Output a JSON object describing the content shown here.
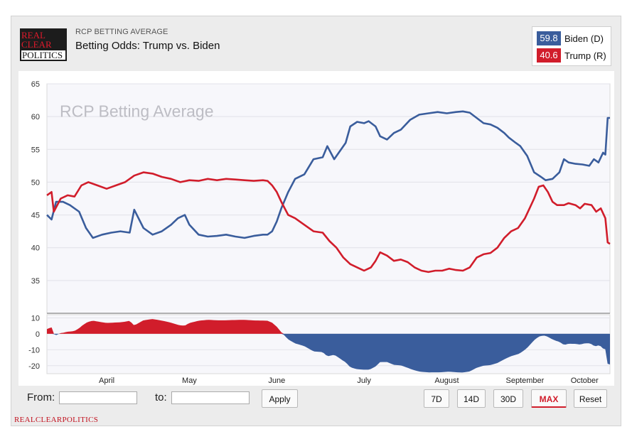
{
  "header": {
    "logo_text": [
      "REAL",
      "CLEAR",
      "POLITICS"
    ],
    "eyebrow": "RCP BETTING AVERAGE",
    "title": "Betting Odds: Trump vs. Biden"
  },
  "legend": [
    {
      "value": "59.8",
      "name": "Biden (D)",
      "color": "#3a5d9c"
    },
    {
      "value": "40.6",
      "name": "Trump (R)",
      "color": "#d11d2b"
    }
  ],
  "controls": {
    "from_label": "From:",
    "to_label": "to:",
    "apply_label": "Apply",
    "range_buttons": [
      "7D",
      "14D",
      "30D",
      "MAX"
    ],
    "active_range": "MAX",
    "reset_label": "Reset"
  },
  "footer_brand": "REALCLEARPOLITICS",
  "chart_data": {
    "type": "line",
    "watermark": "RCP Betting Average",
    "y_ticks": [
      35,
      40,
      45,
      50,
      55,
      60,
      65
    ],
    "ylim": [
      30,
      65
    ],
    "spread_ticks": [
      10,
      0,
      -10,
      -20
    ],
    "spread_lim": [
      -25,
      12
    ],
    "month_labels": [
      "April",
      "May",
      "June",
      "July",
      "August",
      "September",
      "October"
    ],
    "month_positions": [
      0.13,
      0.31,
      0.5,
      0.69,
      0.87,
      1.04,
      1.2
    ],
    "x_domain": [
      0,
      1.225
    ],
    "series": [
      {
        "name": "Biden (D)",
        "color": "#3a5d9c",
        "points": [
          [
            0.0,
            45.0
          ],
          [
            0.01,
            44.3
          ],
          [
            0.02,
            47.0
          ],
          [
            0.035,
            47.0
          ],
          [
            0.05,
            46.5
          ],
          [
            0.07,
            45.5
          ],
          [
            0.085,
            43.0
          ],
          [
            0.1,
            41.5
          ],
          [
            0.12,
            42.0
          ],
          [
            0.14,
            42.3
          ],
          [
            0.16,
            42.5
          ],
          [
            0.18,
            42.3
          ],
          [
            0.19,
            45.8
          ],
          [
            0.21,
            43.0
          ],
          [
            0.23,
            42.0
          ],
          [
            0.25,
            42.5
          ],
          [
            0.27,
            43.5
          ],
          [
            0.285,
            44.5
          ],
          [
            0.3,
            45.0
          ],
          [
            0.31,
            43.5
          ],
          [
            0.33,
            42.0
          ],
          [
            0.35,
            41.7
          ],
          [
            0.37,
            41.8
          ],
          [
            0.39,
            42.0
          ],
          [
            0.41,
            41.7
          ],
          [
            0.43,
            41.5
          ],
          [
            0.45,
            41.8
          ],
          [
            0.47,
            42.0
          ],
          [
            0.48,
            42.0
          ],
          [
            0.49,
            42.5
          ],
          [
            0.5,
            44.0
          ],
          [
            0.51,
            46.0
          ],
          [
            0.525,
            48.5
          ],
          [
            0.54,
            50.5
          ],
          [
            0.56,
            51.2
          ],
          [
            0.58,
            53.5
          ],
          [
            0.6,
            53.8
          ],
          [
            0.61,
            55.5
          ],
          [
            0.625,
            53.5
          ],
          [
            0.64,
            55.0
          ],
          [
            0.65,
            56.0
          ],
          [
            0.66,
            58.5
          ],
          [
            0.675,
            59.2
          ],
          [
            0.69,
            59.0
          ],
          [
            0.7,
            59.3
          ],
          [
            0.715,
            58.5
          ],
          [
            0.725,
            57.0
          ],
          [
            0.74,
            56.5
          ],
          [
            0.755,
            57.5
          ],
          [
            0.77,
            58.0
          ],
          [
            0.79,
            59.5
          ],
          [
            0.81,
            60.3
          ],
          [
            0.83,
            60.5
          ],
          [
            0.85,
            60.7
          ],
          [
            0.87,
            60.5
          ],
          [
            0.89,
            60.7
          ],
          [
            0.905,
            60.8
          ],
          [
            0.92,
            60.6
          ],
          [
            0.935,
            59.8
          ],
          [
            0.95,
            59.0
          ],
          [
            0.965,
            58.8
          ],
          [
            0.98,
            58.3
          ],
          [
            0.995,
            57.5
          ],
          [
            1.005,
            56.8
          ],
          [
            1.02,
            56.0
          ],
          [
            1.03,
            55.5
          ],
          [
            1.045,
            54.0
          ],
          [
            1.06,
            51.5
          ],
          [
            1.075,
            50.8
          ],
          [
            1.085,
            50.3
          ],
          [
            1.1,
            50.5
          ],
          [
            1.115,
            51.5
          ],
          [
            1.125,
            53.5
          ],
          [
            1.135,
            53.0
          ],
          [
            1.15,
            52.8
          ],
          [
            1.165,
            52.7
          ],
          [
            1.18,
            52.5
          ],
          [
            1.19,
            53.5
          ],
          [
            1.2,
            53.0
          ],
          [
            1.21,
            54.5
          ],
          [
            1.215,
            54.2
          ],
          [
            1.22,
            59.8
          ],
          [
            1.225,
            59.8
          ]
        ]
      },
      {
        "name": "Trump (R)",
        "color": "#d11d2b",
        "points": [
          [
            0.0,
            48.0
          ],
          [
            0.01,
            48.5
          ],
          [
            0.015,
            45.5
          ],
          [
            0.03,
            47.5
          ],
          [
            0.045,
            48.0
          ],
          [
            0.06,
            47.8
          ],
          [
            0.075,
            49.5
          ],
          [
            0.09,
            50.0
          ],
          [
            0.11,
            49.5
          ],
          [
            0.13,
            49.0
          ],
          [
            0.15,
            49.5
          ],
          [
            0.17,
            50.0
          ],
          [
            0.19,
            51.0
          ],
          [
            0.21,
            51.5
          ],
          [
            0.23,
            51.3
          ],
          [
            0.25,
            50.8
          ],
          [
            0.27,
            50.5
          ],
          [
            0.29,
            50.0
          ],
          [
            0.31,
            50.3
          ],
          [
            0.33,
            50.2
          ],
          [
            0.35,
            50.5
          ],
          [
            0.37,
            50.3
          ],
          [
            0.39,
            50.5
          ],
          [
            0.41,
            50.4
          ],
          [
            0.43,
            50.3
          ],
          [
            0.45,
            50.2
          ],
          [
            0.47,
            50.3
          ],
          [
            0.48,
            50.2
          ],
          [
            0.49,
            49.5
          ],
          [
            0.5,
            48.5
          ],
          [
            0.51,
            47.0
          ],
          [
            0.525,
            45.0
          ],
          [
            0.54,
            44.5
          ],
          [
            0.56,
            43.5
          ],
          [
            0.58,
            42.5
          ],
          [
            0.6,
            42.3
          ],
          [
            0.615,
            41.0
          ],
          [
            0.63,
            40.0
          ],
          [
            0.645,
            38.5
          ],
          [
            0.66,
            37.5
          ],
          [
            0.675,
            37.0
          ],
          [
            0.69,
            36.5
          ],
          [
            0.705,
            37.0
          ],
          [
            0.715,
            38.0
          ],
          [
            0.725,
            39.3
          ],
          [
            0.74,
            38.8
          ],
          [
            0.755,
            38.0
          ],
          [
            0.77,
            38.2
          ],
          [
            0.785,
            37.8
          ],
          [
            0.8,
            37.0
          ],
          [
            0.815,
            36.5
          ],
          [
            0.83,
            36.3
          ],
          [
            0.845,
            36.5
          ],
          [
            0.86,
            36.5
          ],
          [
            0.875,
            36.8
          ],
          [
            0.89,
            36.6
          ],
          [
            0.905,
            36.5
          ],
          [
            0.92,
            37.0
          ],
          [
            0.935,
            38.5
          ],
          [
            0.95,
            39.0
          ],
          [
            0.965,
            39.2
          ],
          [
            0.98,
            40.0
          ],
          [
            0.995,
            41.5
          ],
          [
            1.01,
            42.5
          ],
          [
            1.025,
            43.0
          ],
          [
            1.04,
            44.5
          ],
          [
            1.05,
            46.0
          ],
          [
            1.06,
            47.5
          ],
          [
            1.07,
            49.3
          ],
          [
            1.08,
            49.5
          ],
          [
            1.09,
            48.5
          ],
          [
            1.1,
            47.0
          ],
          [
            1.11,
            46.5
          ],
          [
            1.125,
            46.5
          ],
          [
            1.135,
            46.8
          ],
          [
            1.15,
            46.5
          ],
          [
            1.16,
            46.0
          ],
          [
            1.17,
            46.7
          ],
          [
            1.185,
            46.5
          ],
          [
            1.195,
            45.5
          ],
          [
            1.205,
            46.0
          ],
          [
            1.215,
            44.5
          ],
          [
            1.22,
            40.8
          ],
          [
            1.225,
            40.6
          ]
        ]
      }
    ]
  }
}
